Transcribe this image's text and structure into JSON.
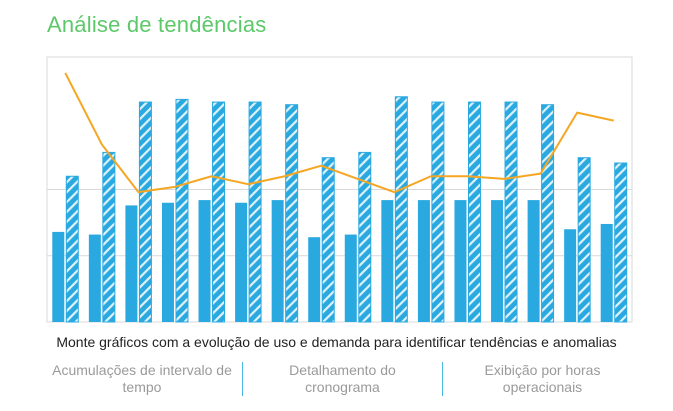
{
  "page": {
    "title": "Análise de tendências",
    "caption": "Monte gráficos com a evolução de uso e demanda para identificar tendências e anomalias",
    "features": [
      "Acumulações de intervalo de tempo",
      "Detalhamento do cronograma",
      "Exibição por horas operacionais"
    ]
  },
  "colors": {
    "title": "#5cc86a",
    "solid_bar": "#29a9e0",
    "hatched_bar": "#29a9e0",
    "line": "#f5a623",
    "grid": "#d9d9d9",
    "separator": "#4ab8e0"
  },
  "chart_data": {
    "type": "bar",
    "title": "",
    "xlabel": "",
    "ylabel": "",
    "ylim": [
      0,
      100
    ],
    "grid": true,
    "legend": "none",
    "categories": [
      "",
      "",
      "",
      "",
      "",
      "",
      "",
      "",
      "",
      "",
      "",
      "",
      "",
      "",
      "",
      ""
    ],
    "series": [
      {
        "style": "solid",
        "values": [
          34,
          33,
          44,
          45,
          46,
          45,
          46,
          32,
          33,
          46,
          46,
          46,
          46,
          46,
          35,
          37
        ]
      },
      {
        "style": "hatched",
        "values": [
          55,
          64,
          83,
          84,
          83,
          83,
          82,
          62,
          64,
          85,
          83,
          83,
          83,
          82,
          62,
          60
        ]
      },
      {
        "style": "line",
        "values": [
          94,
          67,
          49,
          51,
          55,
          52,
          55,
          59,
          54,
          49,
          55,
          55,
          54,
          56,
          79,
          76
        ]
      }
    ]
  }
}
